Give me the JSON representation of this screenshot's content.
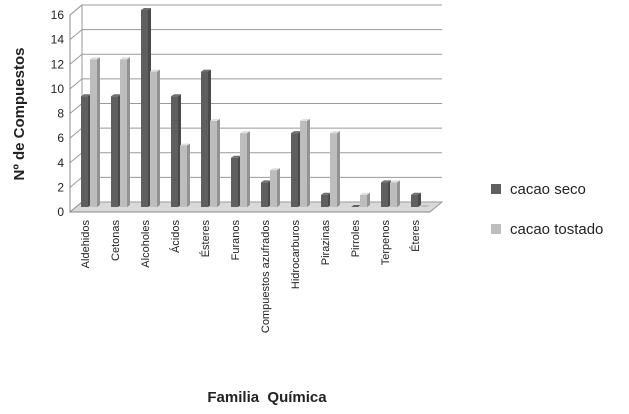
{
  "chart_data": {
    "type": "bar",
    "title": "",
    "xlabel": "Familia  Química",
    "ylabel": "Nº  de  Compuestos",
    "ylim": [
      0,
      16
    ],
    "yticks": [
      "0",
      "2",
      "4",
      "6",
      "8",
      "10",
      "12",
      "14",
      "16"
    ],
    "grid": true,
    "legend_position": "right",
    "categories": [
      "Aldehidos",
      "Cetonas",
      "Alcoholes",
      "Ácidos",
      "Ésteres",
      "Furanos",
      "Compuestos azufrados",
      "Hidrocarburos",
      "Pirazinas",
      "Pirroles",
      "Terpenos",
      "Éteres"
    ],
    "series": [
      {
        "name": "cacao seco",
        "color": "#5f5f5f",
        "values": [
          9,
          9,
          16,
          9,
          11,
          4,
          2,
          6,
          1,
          0,
          2,
          1
        ]
      },
      {
        "name": "cacao tostado",
        "color": "#bdbdbd",
        "values": [
          12,
          12,
          11,
          5,
          7,
          6,
          3,
          7,
          6,
          1,
          2,
          0
        ]
      }
    ]
  }
}
